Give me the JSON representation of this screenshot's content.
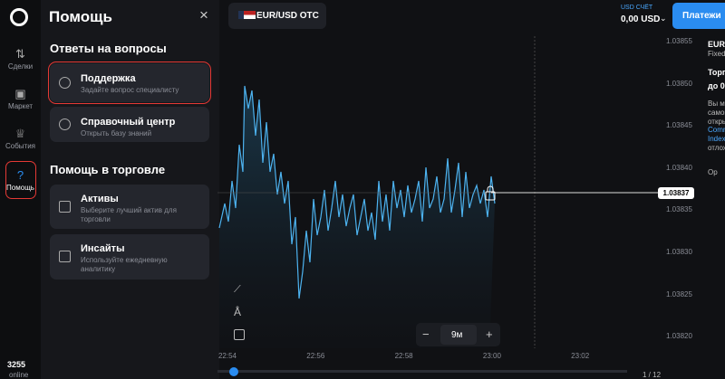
{
  "sidebar": {
    "items": [
      {
        "label": "Сделки"
      },
      {
        "label": "Маркет"
      },
      {
        "label": "События"
      },
      {
        "label": "Помощь"
      }
    ],
    "online_count": "3255",
    "online_label": "online"
  },
  "help_panel": {
    "title": "Помощь",
    "sections": [
      {
        "title": "Ответы на вопросы",
        "cards": [
          {
            "title": "Поддержка",
            "subtitle": "Задайте вопрос специалисту"
          },
          {
            "title": "Справочный центр",
            "subtitle": "Открыть базу знаний"
          }
        ]
      },
      {
        "title": "Помощь в торговле",
        "cards": [
          {
            "title": "Активы",
            "subtitle": "Выберите лучший актив для торговли"
          },
          {
            "title": "Инсайты",
            "subtitle": "Используйте ежедневную аналитику"
          }
        ]
      }
    ]
  },
  "top_bar": {
    "asset": "EUR/USD OTC",
    "account_label": "USD СЧЁТ",
    "balance": "0,00 USD",
    "payments_button": "Платежи"
  },
  "chart": {
    "price_ticks": [
      "1.03855",
      "1.03850",
      "1.03845",
      "1.03840",
      "1.03835",
      "1.03830",
      "1.03825",
      "1.03820"
    ],
    "current_price": "1.03837",
    "time_ticks": [
      "22:54",
      "22:56",
      "22:58",
      "23:00",
      "23:02"
    ],
    "timeframe": "9м",
    "pagination": "1 / 12"
  },
  "side_panel": {
    "lines": [
      "EUR/",
      "Fixed",
      "Торг",
      "до 0",
      "Вы м",
      "самок",
      "откры",
      "Comm",
      "Index",
      "отлож",
      "Ор"
    ]
  }
}
